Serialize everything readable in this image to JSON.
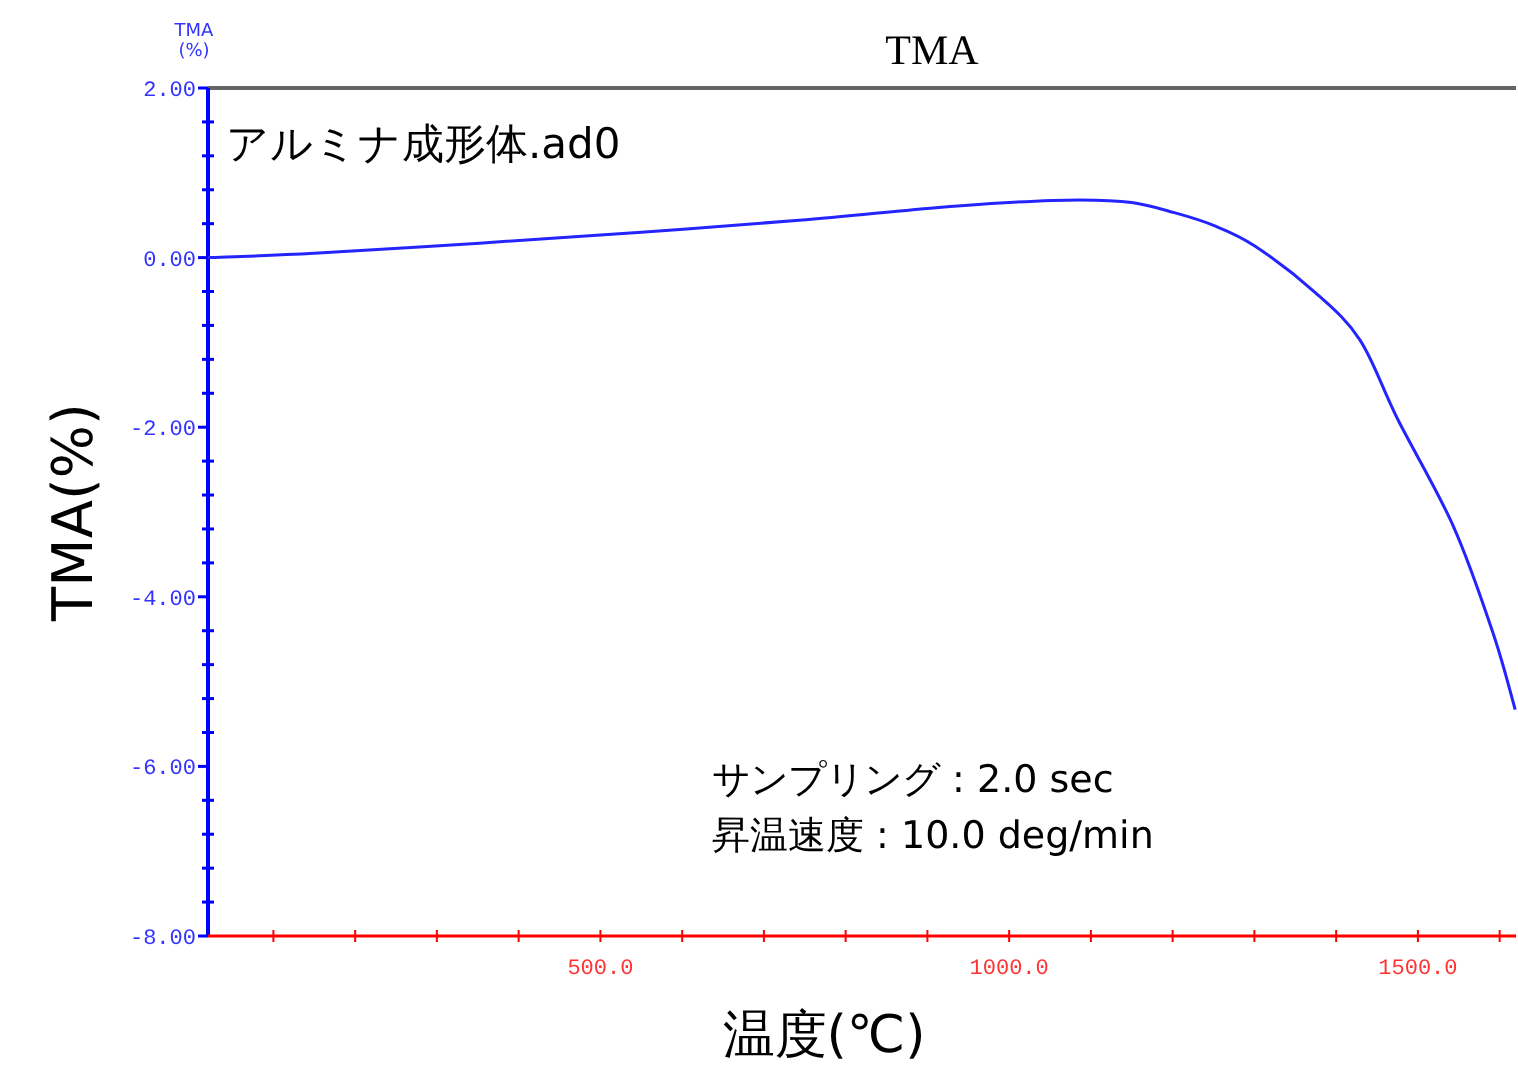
{
  "chart_data": {
    "type": "line",
    "title": "TMA",
    "xlabel": "温度(℃)",
    "ylabel": "TMA(%)",
    "annotations": [
      "TMA (%)",
      "アルミナ成形体.ad0",
      "サンプリング : 2.0 sec",
      "昇温速度 : 10.0 deg/min"
    ],
    "xlim": [
      20,
      1620
    ],
    "ylim": [
      -8,
      2
    ],
    "xticks": [
      {
        "value": 100,
        "label": null
      },
      {
        "value": 200,
        "label": null
      },
      {
        "value": 300,
        "label": null
      },
      {
        "value": 400,
        "label": null
      },
      {
        "value": 500,
        "label": "500.0"
      },
      {
        "value": 600,
        "label": null
      },
      {
        "value": 700,
        "label": null
      },
      {
        "value": 800,
        "label": null
      },
      {
        "value": 900,
        "label": null
      },
      {
        "value": 1000,
        "label": "1000.0"
      },
      {
        "value": 1100,
        "label": null
      },
      {
        "value": 1200,
        "label": null
      },
      {
        "value": 1300,
        "label": null
      },
      {
        "value": 1400,
        "label": null
      },
      {
        "value": 1500,
        "label": "1500.0"
      },
      {
        "value": 1600,
        "label": null
      }
    ],
    "yticks": [
      {
        "value": -8,
        "label": "-8.00"
      },
      {
        "value": -7.6,
        "label": null
      },
      {
        "value": -7.2,
        "label": null
      },
      {
        "value": -6.8,
        "label": null
      },
      {
        "value": -6.4,
        "label": null
      },
      {
        "value": -6,
        "label": "-6.00"
      },
      {
        "value": -5.6,
        "label": null
      },
      {
        "value": -5.2,
        "label": null
      },
      {
        "value": -4.8,
        "label": null
      },
      {
        "value": -4.4,
        "label": null
      },
      {
        "value": -4,
        "label": "-4.00"
      },
      {
        "value": -3.6,
        "label": null
      },
      {
        "value": -3.2,
        "label": null
      },
      {
        "value": -2.8,
        "label": null
      },
      {
        "value": -2.4,
        "label": null
      },
      {
        "value": -2,
        "label": "-2.00"
      },
      {
        "value": -1.6,
        "label": null
      },
      {
        "value": -1.2,
        "label": null
      },
      {
        "value": -0.8,
        "label": null
      },
      {
        "value": -0.4,
        "label": null
      },
      {
        "value": 0,
        "label": "0.00"
      },
      {
        "value": 0.4,
        "label": null
      },
      {
        "value": 0.8,
        "label": null
      },
      {
        "value": 1.2,
        "label": null
      },
      {
        "value": 1.6,
        "label": null
      },
      {
        "value": 2,
        "label": "2.00"
      }
    ],
    "x": [
      20,
      150,
      352,
      550,
      743,
      900,
      1000,
      1086,
      1150,
      1202,
      1250,
      1300,
      1373,
      1429,
      1475,
      1543,
      1592,
      1619
    ],
    "series": [
      {
        "color": "#2424ff",
        "values": [
          0.0,
          0.05,
          0.17,
          0.3,
          0.44,
          0.58,
          0.65,
          0.68,
          0.65,
          0.53,
          0.38,
          0.14,
          -0.4,
          -0.97,
          -1.9,
          -3.16,
          -4.43,
          -5.33
        ]
      }
    ]
  }
}
